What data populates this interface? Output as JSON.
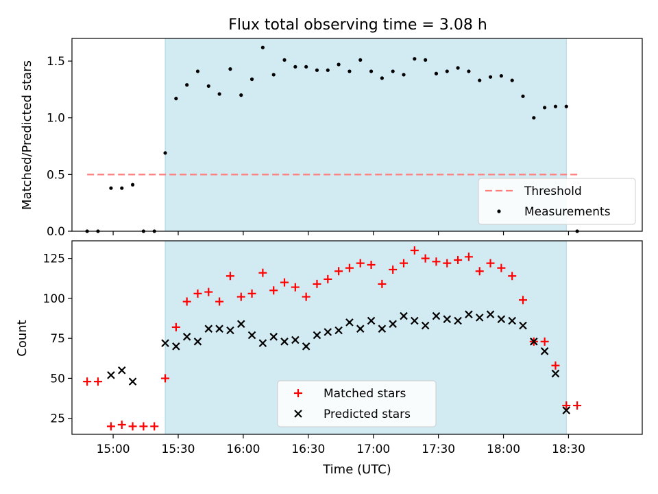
{
  "figure": {
    "title": "Flux total observing time = 3.08 h",
    "colors": {
      "shade": "#add8e6",
      "threshold": "#ff7f7f",
      "matched": "#ff0000",
      "predicted": "#000000",
      "measurement": "#000000"
    }
  },
  "chart_data": [
    {
      "type": "scatter",
      "title": "Flux total observing time = 3.08 h",
      "ylabel": "Matched/Predicted stars",
      "xlabel": "",
      "ylim": [
        0,
        1.7
      ],
      "yticks": [
        0.0,
        0.5,
        1.0,
        1.5
      ],
      "ytick_labels": [
        "0.0",
        "0.5",
        "1.0",
        "1.5"
      ],
      "xlim": [
        "14:41",
        "19:04"
      ],
      "xticks": [
        "15:00",
        "15:30",
        "16:00",
        "16:30",
        "17:00",
        "17:30",
        "18:00",
        "18:30"
      ],
      "shaded_span": [
        "15:24",
        "18:29"
      ],
      "threshold": {
        "y": 0.5,
        "x_range": [
          "14:48",
          "18:35"
        ],
        "label": "Threshold"
      },
      "legend": {
        "position": "lower right",
        "entries": [
          "Threshold",
          "Measurements"
        ]
      },
      "series": [
        {
          "name": "Measurements",
          "marker": "dot",
          "x": [
            "14:48",
            "14:53",
            "14:59",
            "15:04",
            "15:09",
            "15:14",
            "15:19",
            "15:24",
            "15:29",
            "15:34",
            "15:39",
            "15:44",
            "15:49",
            "15:54",
            "15:59",
            "16:04",
            "16:09",
            "16:14",
            "16:19",
            "16:24",
            "16:29",
            "16:34",
            "16:39",
            "16:44",
            "16:49",
            "16:54",
            "16:59",
            "17:04",
            "17:09",
            "17:14",
            "17:19",
            "17:24",
            "17:29",
            "17:34",
            "17:39",
            "17:44",
            "17:49",
            "17:54",
            "17:59",
            "18:04",
            "18:09",
            "18:14",
            "18:19",
            "18:24",
            "18:29",
            "18:34"
          ],
          "y": [
            0.0,
            0.0,
            0.38,
            0.38,
            0.41,
            0.0,
            0.0,
            0.69,
            1.17,
            1.29,
            1.41,
            1.28,
            1.21,
            1.43,
            1.2,
            1.34,
            1.62,
            1.38,
            1.51,
            1.45,
            1.45,
            1.42,
            1.42,
            1.47,
            1.41,
            1.51,
            1.41,
            1.35,
            1.41,
            1.38,
            1.52,
            1.51,
            1.39,
            1.41,
            1.44,
            1.41,
            1.33,
            1.36,
            1.37,
            1.33,
            1.19,
            1.0,
            1.09,
            1.1,
            1.1,
            0.0
          ]
        }
      ]
    },
    {
      "type": "scatter",
      "title": "",
      "ylabel": "Count",
      "xlabel": "Time (UTC)",
      "ylim": [
        15,
        136
      ],
      "yticks": [
        25,
        50,
        75,
        100,
        125
      ],
      "ytick_labels": [
        "25",
        "50",
        "75",
        "100",
        "125"
      ],
      "xlim": [
        "14:41",
        "19:04"
      ],
      "xticks": [
        "15:00",
        "15:30",
        "16:00",
        "16:30",
        "17:00",
        "17:30",
        "18:00",
        "18:30"
      ],
      "xtick_labels": [
        "15:00",
        "15:30",
        "16:00",
        "16:30",
        "17:00",
        "17:30",
        "18:00",
        "18:30"
      ],
      "shaded_span": [
        "15:24",
        "18:29"
      ],
      "legend": {
        "position": "lower center",
        "entries": [
          "Matched stars",
          "Predicted stars"
        ]
      },
      "series": [
        {
          "name": "Matched stars",
          "marker": "plus",
          "x": [
            "14:48",
            "14:53",
            "14:59",
            "15:04",
            "15:09",
            "15:14",
            "15:19",
            "15:24",
            "15:29",
            "15:34",
            "15:39",
            "15:44",
            "15:49",
            "15:54",
            "15:59",
            "16:04",
            "16:09",
            "16:14",
            "16:19",
            "16:24",
            "16:29",
            "16:34",
            "16:39",
            "16:44",
            "16:49",
            "16:54",
            "16:59",
            "17:04",
            "17:09",
            "17:14",
            "17:19",
            "17:24",
            "17:29",
            "17:34",
            "17:39",
            "17:44",
            "17:49",
            "17:54",
            "17:59",
            "18:04",
            "18:09",
            "18:14",
            "18:19",
            "18:24",
            "18:29",
            "18:34"
          ],
          "y": [
            48,
            48,
            20,
            21,
            20,
            20,
            20,
            50,
            82,
            98,
            103,
            104,
            98,
            114,
            101,
            103,
            116,
            105,
            110,
            107,
            101,
            109,
            112,
            117,
            119,
            122,
            121,
            109,
            118,
            122,
            130,
            125,
            123,
            122,
            124,
            126,
            117,
            122,
            119,
            114,
            99,
            73,
            73,
            58,
            33,
            33
          ]
        },
        {
          "name": "Predicted stars",
          "marker": "x",
          "x": [
            "14:59",
            "15:04",
            "15:09",
            "15:24",
            "15:29",
            "15:34",
            "15:39",
            "15:44",
            "15:49",
            "15:54",
            "15:59",
            "16:04",
            "16:09",
            "16:14",
            "16:19",
            "16:24",
            "16:29",
            "16:34",
            "16:39",
            "16:44",
            "16:49",
            "16:54",
            "16:59",
            "17:04",
            "17:09",
            "17:14",
            "17:19",
            "17:24",
            "17:29",
            "17:34",
            "17:39",
            "17:44",
            "17:49",
            "17:54",
            "17:59",
            "18:04",
            "18:09",
            "18:14",
            "18:19",
            "18:24",
            "18:29"
          ],
          "y": [
            52,
            55,
            48,
            72,
            70,
            76,
            73,
            81,
            81,
            80,
            84,
            77,
            72,
            76,
            73,
            74,
            70,
            77,
            79,
            80,
            85,
            81,
            86,
            81,
            84,
            89,
            86,
            83,
            89,
            87,
            86,
            90,
            88,
            90,
            87,
            86,
            83,
            73,
            67,
            53,
            30
          ]
        }
      ]
    }
  ]
}
